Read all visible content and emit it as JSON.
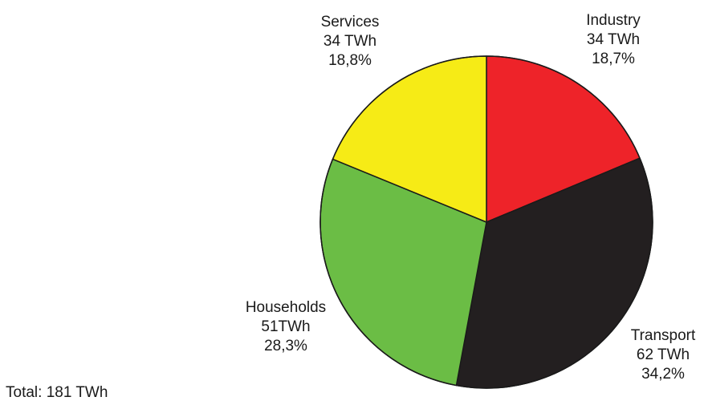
{
  "chart_data": {
    "type": "pie",
    "title": "",
    "slices": [
      {
        "label": "Industry",
        "value_text": "34 TWh",
        "value": 34,
        "percent_text": "18,7%",
        "percent": 18.7,
        "color": "#ee2329"
      },
      {
        "label": "Transport",
        "value_text": "62 TWh",
        "value": 62,
        "percent_text": "34,2%",
        "percent": 34.2,
        "color": "#231f20"
      },
      {
        "label": "Households",
        "value_text": "51TWh",
        "value": 51,
        "percent_text": "28,3%",
        "percent": 28.3,
        "color": "#6bbd45"
      },
      {
        "label": "Services",
        "value_text": "34 TWh",
        "value": 34,
        "percent_text": "18,8%",
        "percent": 18.8,
        "color": "#f6eb16"
      }
    ],
    "total_text": "Total: 181 TWh"
  }
}
